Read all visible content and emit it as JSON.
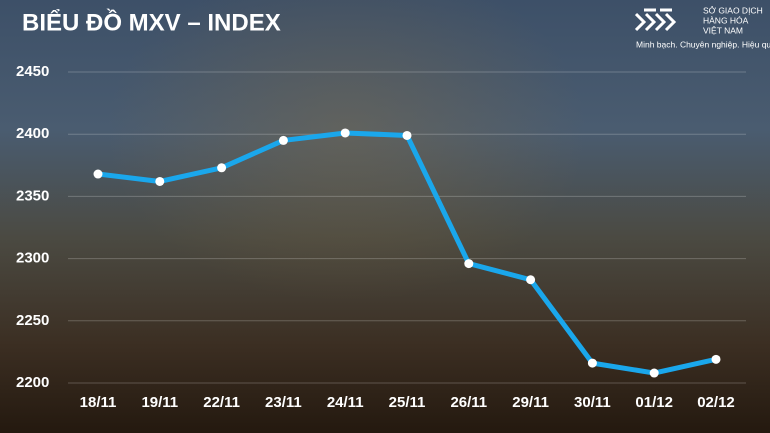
{
  "chart_data": {
    "type": "line",
    "title": "BIỂU ĐỒ MXV – INDEX",
    "categories": [
      "18/11",
      "19/11",
      "22/11",
      "23/11",
      "24/11",
      "25/11",
      "26/11",
      "29/11",
      "30/11",
      "01/12",
      "02/12"
    ],
    "series": [
      {
        "name": "MXV-Index",
        "color": "#1aa7ec",
        "values": [
          2368,
          2362,
          2373,
          2395,
          2401,
          2399,
          2296,
          2283,
          2216,
          2208,
          2219
        ]
      }
    ],
    "ylim": [
      2200,
      2450
    ],
    "yticks": [
      2200,
      2250,
      2300,
      2350,
      2400,
      2450
    ],
    "grid": true
  },
  "logo": {
    "lines": [
      "SỞ GIAO DỊCH",
      "HÀNG HÓA",
      "VIỆT NAM"
    ],
    "tagline": "Minh bạch. Chuyên nghiệp. Hiệu quả"
  }
}
